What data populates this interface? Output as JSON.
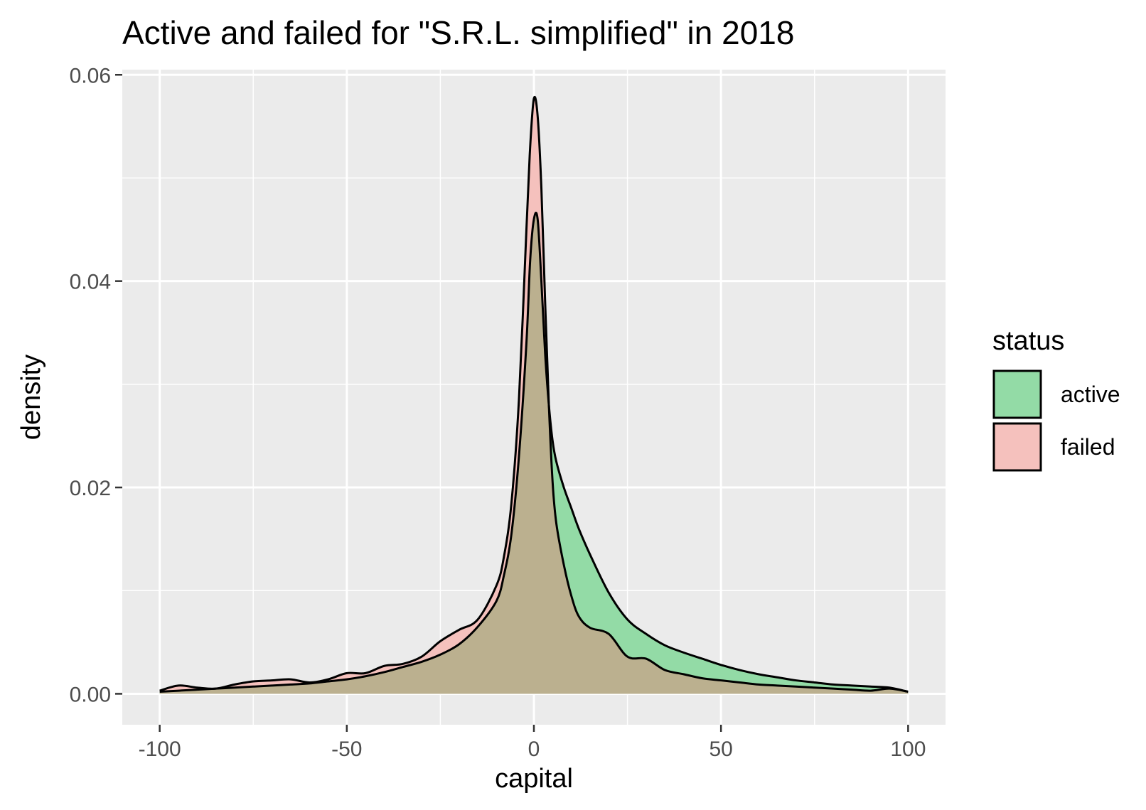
{
  "chart_data": {
    "type": "area",
    "title": "Active and failed for \"S.R.L. simplified\" in 2018",
    "xlabel": "capital",
    "ylabel": "density",
    "xlim": [
      -110,
      110
    ],
    "ylim": [
      -0.003,
      0.0605
    ],
    "x_ticks": [
      -100,
      -50,
      0,
      50,
      100
    ],
    "x_tick_labels": [
      "-100",
      "-50",
      "0",
      "50",
      "100"
    ],
    "y_ticks": [
      0,
      0.02,
      0.04,
      0.06
    ],
    "y_tick_labels": [
      "0.00",
      "0.02",
      "0.04",
      "0.06"
    ],
    "grid": true,
    "panel_background": "#ebebeb",
    "legend": {
      "title": "status",
      "position": "right",
      "entries": [
        {
          "label": "active",
          "color": "#93dba6"
        },
        {
          "label": "failed",
          "color": "#f5c1bd"
        }
      ]
    },
    "overlap_color": "#bbb08f",
    "series": [
      {
        "name": "active",
        "color": "#93dba6",
        "x": [
          -100,
          -95,
          -90,
          -85,
          -80,
          -75,
          -70,
          -65,
          -60,
          -55,
          -50,
          -45,
          -40,
          -35,
          -30,
          -25,
          -20,
          -15,
          -10,
          -8,
          -6,
          -4,
          -2,
          -1,
          0,
          1,
          2,
          3,
          4,
          5,
          6,
          8,
          10,
          12,
          15,
          20,
          25,
          30,
          35,
          40,
          45,
          50,
          55,
          60,
          65,
          70,
          75,
          80,
          85,
          90,
          95,
          100
        ],
        "y": [
          0.0002,
          0.0003,
          0.0004,
          0.0005,
          0.0006,
          0.0007,
          0.0008,
          0.0009,
          0.001,
          0.0012,
          0.0014,
          0.0017,
          0.0021,
          0.0026,
          0.0031,
          0.0038,
          0.0048,
          0.0065,
          0.009,
          0.0115,
          0.0155,
          0.023,
          0.034,
          0.042,
          0.046,
          0.046,
          0.04,
          0.033,
          0.028,
          0.0245,
          0.0225,
          0.02,
          0.018,
          0.016,
          0.0135,
          0.0098,
          0.0072,
          0.0058,
          0.0047,
          0.004,
          0.0034,
          0.0028,
          0.0023,
          0.0019,
          0.0016,
          0.0013,
          0.0011,
          0.0009,
          0.0008,
          0.0007,
          0.0006,
          0.0002
        ]
      },
      {
        "name": "failed",
        "color": "#f5c1bd",
        "x": [
          -100,
          -95,
          -90,
          -85,
          -80,
          -75,
          -70,
          -65,
          -60,
          -55,
          -50,
          -45,
          -40,
          -35,
          -30,
          -25,
          -20,
          -15,
          -10,
          -8,
          -6,
          -4,
          -2,
          -1,
          0,
          1,
          2,
          3,
          4,
          5,
          6,
          8,
          10,
          12,
          15,
          20,
          25,
          30,
          35,
          40,
          45,
          50,
          55,
          60,
          65,
          70,
          75,
          80,
          85,
          90,
          95,
          100
        ],
        "y": [
          0.0003,
          0.0008,
          0.0006,
          0.0005,
          0.0009,
          0.0012,
          0.0013,
          0.0014,
          0.0011,
          0.0014,
          0.002,
          0.002,
          0.0027,
          0.0029,
          0.0036,
          0.0051,
          0.0062,
          0.0072,
          0.0105,
          0.0133,
          0.0185,
          0.0285,
          0.045,
          0.053,
          0.0577,
          0.056,
          0.049,
          0.038,
          0.028,
          0.0205,
          0.0165,
          0.0125,
          0.0095,
          0.0075,
          0.0064,
          0.0058,
          0.0036,
          0.0034,
          0.0023,
          0.0019,
          0.0015,
          0.0013,
          0.0011,
          0.0009,
          0.0008,
          0.0007,
          0.0006,
          0.0005,
          0.0004,
          0.0003,
          0.0005,
          0.0002
        ]
      }
    ]
  }
}
